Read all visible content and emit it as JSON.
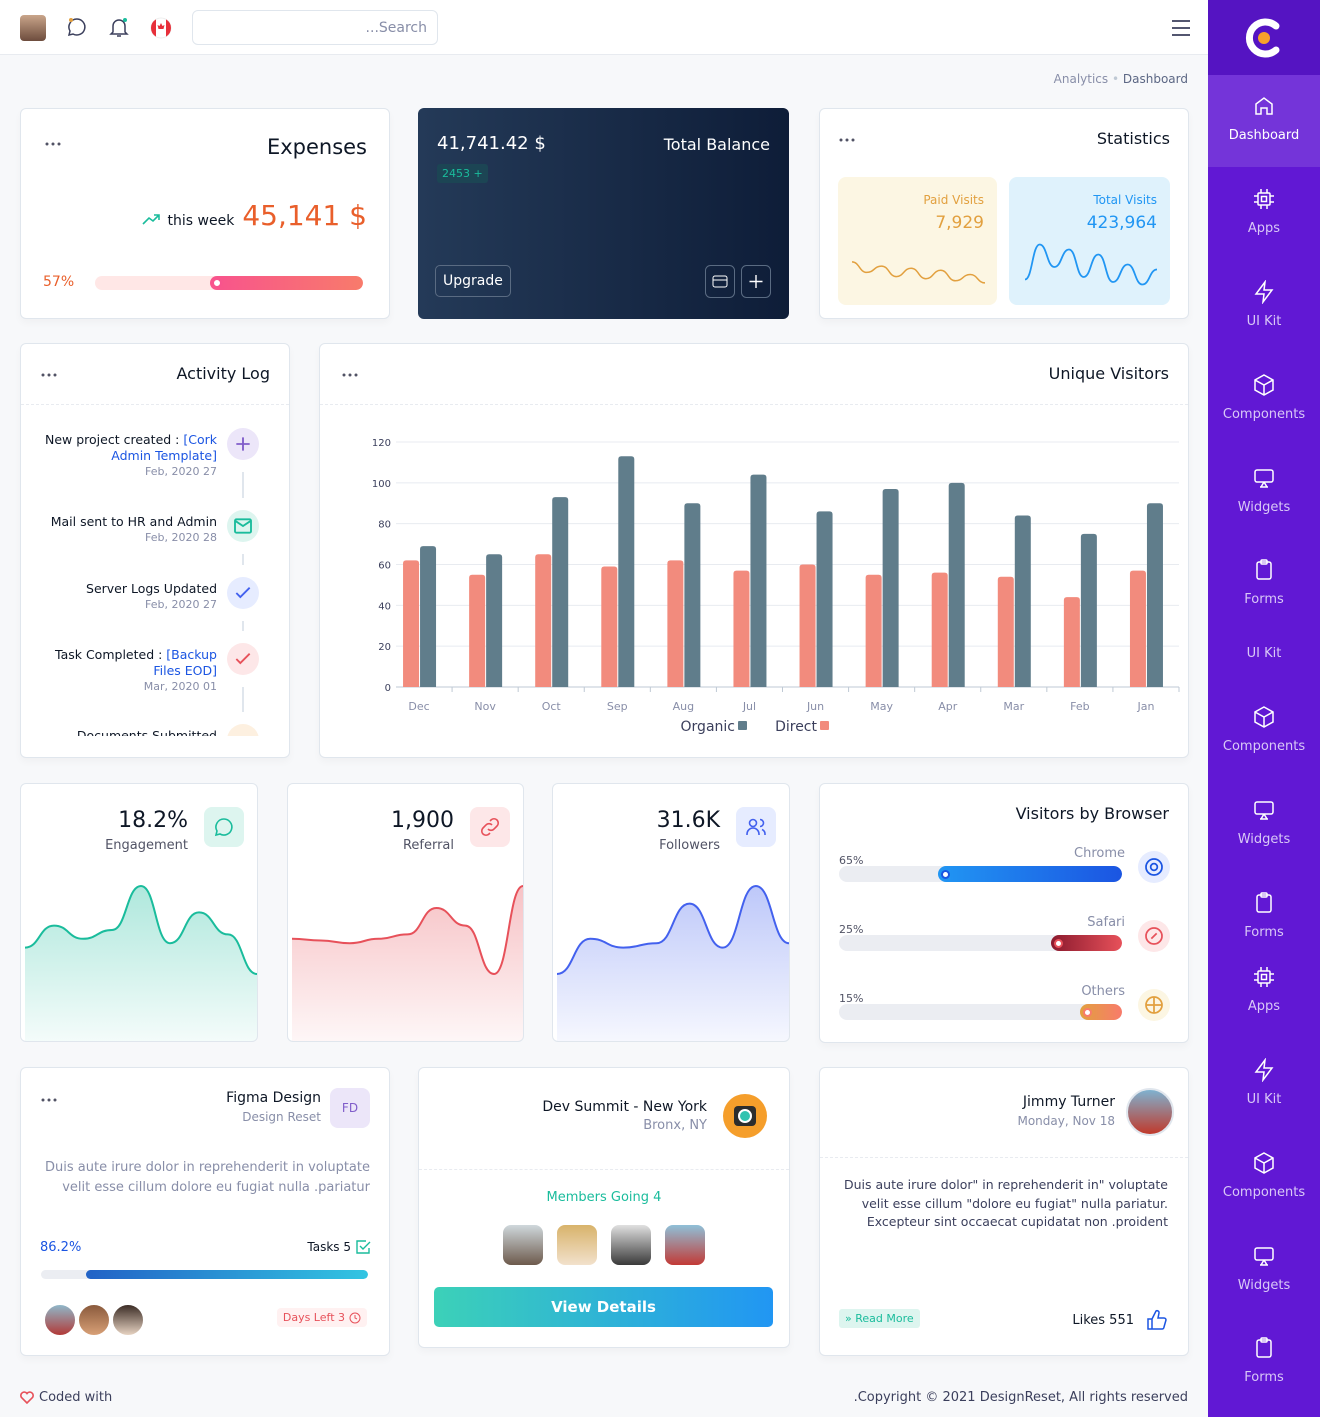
{
  "topbar": {
    "search": "...Search"
  },
  "breadcrumb": {
    "parent": "Analytics",
    "current": "Dashboard"
  },
  "sidebar": {
    "items": [
      "Dashboard",
      "Apps",
      "UI Kit",
      "Components",
      "Widgets",
      "Forms",
      "UI Kit",
      "Components",
      "Widgets",
      "Forms",
      "Apps",
      "UI Kit",
      "Components",
      "Widgets",
      "Forms"
    ]
  },
  "expenses": {
    "title": "Expenses",
    "period": "this week",
    "amount": "45,141 $",
    "progress": {
      "value": 57,
      "label": "57%"
    }
  },
  "balance": {
    "amount": "41,741.42 $",
    "title": "Total Balance",
    "badge": "2453 +",
    "button": "Upgrade"
  },
  "statistics": {
    "title": "Statistics",
    "paid": {
      "label": "Paid Visits",
      "value": "7,929",
      "color": "#e2a03f",
      "ylim": [
        0,
        100
      ],
      "trend": [
        55,
        30,
        45,
        20,
        40,
        15,
        35,
        10,
        25,
        5
      ]
    },
    "total": {
      "label": "Total Visits",
      "value": "423,964",
      "color": "#2196f3",
      "ylim": [
        0,
        100
      ],
      "trend": [
        15,
        85,
        40,
        75,
        20,
        65,
        10,
        45,
        5,
        35
      ]
    }
  },
  "activity_log": {
    "title": "Activity Log",
    "items": [
      {
        "text": "New project created : ",
        "link": "[Cork Admin Template]",
        "date": "Feb, 2020 27"
      },
      {
        "text": "Mail sent to HR and Admin",
        "date": "Feb, 2020 28"
      },
      {
        "text": "Server Logs Updated",
        "date": "Feb, 2020 27"
      },
      {
        "text": "Task Completed : ",
        "link": "[Backup Files EOD]",
        "date": "Mar, 2020 01"
      },
      {
        "text": "Documents Submitted"
      }
    ]
  },
  "chart_data": {
    "type": "bar",
    "title": "Unique Visitors",
    "categories": [
      "Dec",
      "Nov",
      "Oct",
      "Sep",
      "Aug",
      "Jul",
      "Jun",
      "May",
      "Apr",
      "Mar",
      "Feb",
      "Jan"
    ],
    "series": [
      {
        "name": "Direct",
        "color": "#f28b7d",
        "values": [
          62,
          55,
          65,
          59,
          62,
          57,
          60,
          55,
          56,
          54,
          44,
          57
        ]
      },
      {
        "name": "Organic",
        "color": "#607d8b",
        "values": [
          69,
          65,
          93,
          113,
          90,
          104,
          86,
          97,
          100,
          84,
          75,
          90
        ]
      }
    ],
    "ylim": [
      0,
      120
    ],
    "yticks": [
      0,
      20,
      40,
      60,
      80,
      100,
      120
    ],
    "grid": true
  },
  "stat_cards": [
    {
      "value": "18.2%",
      "label": "Engagement",
      "color": "#1abc9c",
      "ylim": [
        0,
        100
      ],
      "trend": [
        30,
        55,
        40,
        50,
        100,
        35,
        70,
        45,
        0
      ]
    },
    {
      "value": "1,900",
      "label": "Referral",
      "color": "#e7515a",
      "ylim": [
        0,
        100
      ],
      "trend": [
        40,
        38,
        35,
        40,
        45,
        75,
        55,
        0,
        100
      ]
    },
    {
      "value": "31.6K",
      "label": "Followers",
      "color": "#4361ee",
      "ylim": [
        0,
        100
      ],
      "trend": [
        0,
        40,
        30,
        35,
        80,
        30,
        100,
        35
      ]
    }
  ],
  "browsers": {
    "title": "Visitors by Browser",
    "items": [
      {
        "name": "Chrome",
        "share": {
          "value": 65,
          "label": "65%"
        }
      },
      {
        "name": "Safari",
        "share": {
          "value": 25,
          "label": "25%"
        }
      },
      {
        "name": "Others",
        "share": {
          "value": 15,
          "label": "15%"
        }
      }
    ]
  },
  "project": {
    "title": "Figma Design",
    "subtitle": "Design Reset",
    "initials": "FD",
    "description": "Duis aute irure dolor in reprehenderit in voluptate velit esse cillum dolore eu fugiat nulla .pariatur",
    "progress": {
      "value": 86.2,
      "label": "86.2%"
    },
    "tasks": "Tasks 5",
    "days_left": "Days Left 3"
  },
  "event": {
    "title": "Dev Summit - New York",
    "location": "Bronx, NY",
    "members": "Members Going 4",
    "button": "View Details"
  },
  "post": {
    "author": "Jimmy Turner",
    "date": "Monday, Nov 18",
    "text": "Duis aute irure dolor\" in reprehenderit in\" voluptate velit esse cillum \"dolore eu fugiat\" nulla pariatur. Excepteur sint occaecat cupidatat non .proident",
    "read_more": "Read More",
    "likes": "Likes 551"
  },
  "footer": {
    "left": "Coded with",
    "right": ".Copyright © 2021 DesignReset, All rights reserved"
  }
}
